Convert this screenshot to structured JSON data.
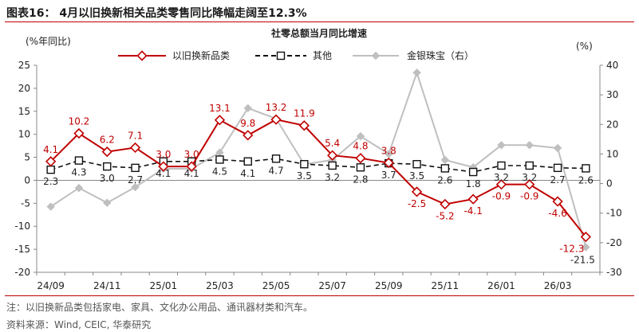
{
  "figure_title": "图表16： 4月以旧换新相关品类零售同比降幅走阔至12.3%",
  "note": "注：以旧换新品类包括家电、家具、文化办公用品、通讯器材类和汽车。",
  "source": "资料来源：Wind, CEIC, 华泰研究",
  "chart_data": {
    "type": "line",
    "title": "社零总额当月同比增速",
    "ylabel_left": "(%年同比)",
    "ylabel_right": "(%)",
    "ylim_left": [
      -20,
      25
    ],
    "yticks_left": [
      -20,
      -15,
      -10,
      -5,
      0,
      5,
      10,
      15,
      20,
      25
    ],
    "ylim_right": [
      -30,
      40
    ],
    "yticks_right": [
      -30,
      -20,
      -10,
      0,
      10,
      20,
      30,
      40
    ],
    "x": [
      "24/09",
      "24/10",
      "24/11",
      "24/12",
      "25/01",
      "25/02",
      "25/03",
      "25/04",
      "25/05",
      "25/06",
      "25/07",
      "25/08",
      "25/09",
      "25/10",
      "25/11",
      "25/12",
      "26/01",
      "26/02",
      "26/03",
      "26/04"
    ],
    "xtick_labels": [
      "24/09",
      "24/11",
      "25/01",
      "25/03",
      "25/05",
      "25/07",
      "25/09",
      "25/11",
      "26/01",
      "26/03"
    ],
    "legend_position": "top",
    "grid": false,
    "series": [
      {
        "name": "以旧换新品类",
        "axis": "left",
        "color": "#c00000",
        "style": "solid",
        "marker": "diamond-open",
        "values": [
          4.1,
          10.2,
          6.2,
          7.1,
          3.0,
          3.0,
          13.1,
          9.8,
          13.2,
          11.9,
          5.4,
          4.8,
          3.8,
          -2.5,
          -5.2,
          -4.1,
          -0.9,
          -0.9,
          -4.6,
          -12.3
        ]
      },
      {
        "name": "其他",
        "axis": "left",
        "color": "#111111",
        "style": "dashed",
        "marker": "square-open",
        "values": [
          2.3,
          4.3,
          3.0,
          2.7,
          4.1,
          4.1,
          4.5,
          4.1,
          4.7,
          3.5,
          3.2,
          2.8,
          3.7,
          3.5,
          2.6,
          1.8,
          3.2,
          3.2,
          2.7,
          2.6
        ]
      },
      {
        "name": "金银珠宝（右）",
        "axis": "right",
        "color": "#bfbfbf",
        "style": "solid",
        "marker": "diamond-filled",
        "values": [
          -7.8,
          -1.5,
          -6.5,
          -1.2,
          5,
          5,
          10.5,
          25.5,
          22,
          6.5,
          8,
          16,
          10,
          37.5,
          8,
          5.5,
          13,
          13,
          12,
          -21.5
        ]
      }
    ]
  }
}
